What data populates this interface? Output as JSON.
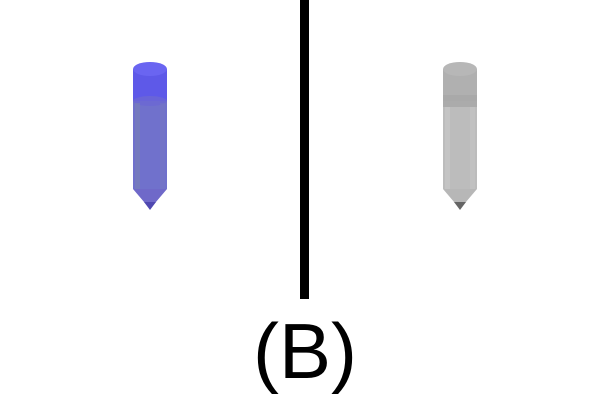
{
  "caption": "(B)",
  "colors": {
    "background": "#ffffff",
    "divider": "#000000",
    "pencil_left": "#5a5ad6",
    "pencil_right": "#b3b3b3"
  },
  "icons": {
    "left": "pencil-icon",
    "right": "pencil-icon"
  }
}
